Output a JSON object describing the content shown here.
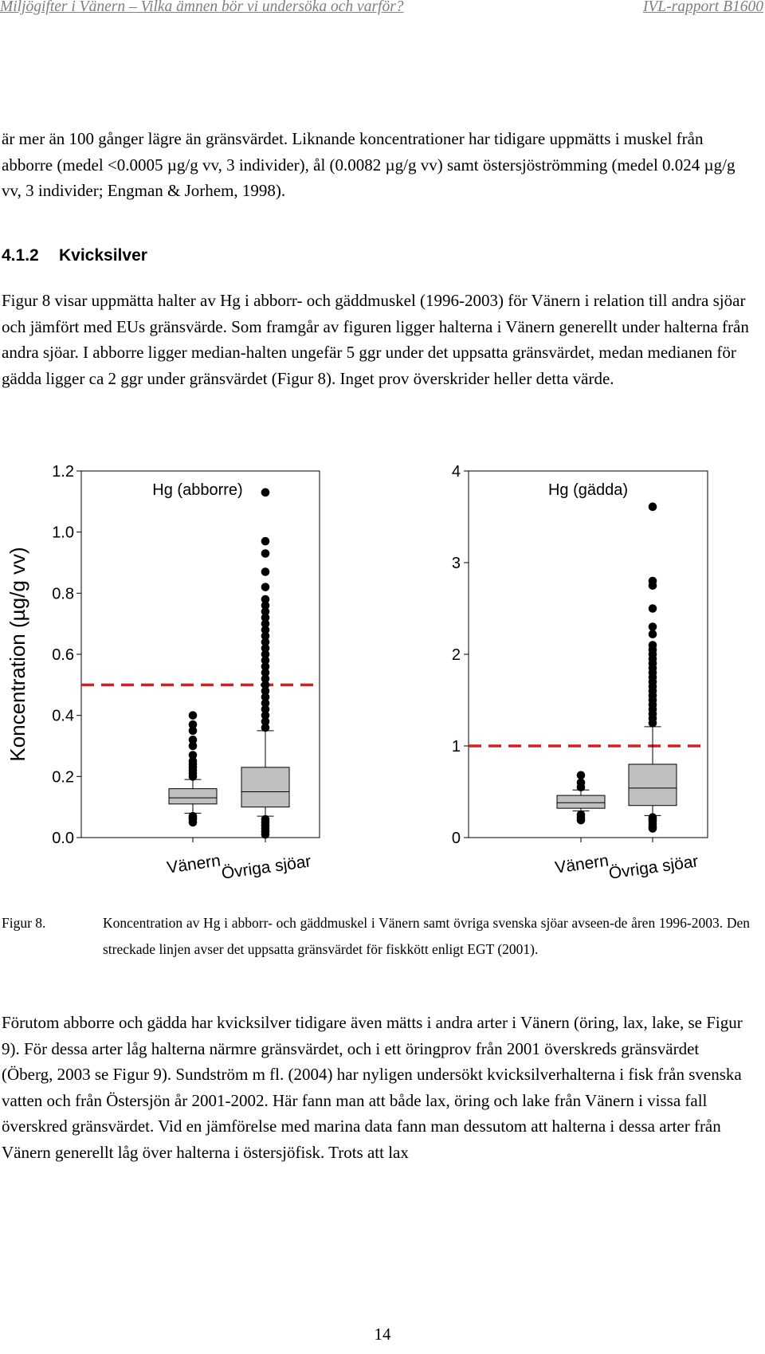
{
  "header": {
    "left": "Miljögifter i Vänern – Vilka ämnen bör vi undersöka och varför?",
    "right": "IVL-rapport B1600"
  },
  "intro_paragraph": "är mer än 100 gånger lägre än gränsvärdet. Liknande koncentrationer har tidigare uppmätts i muskel från abborre (medel <0.0005 µg/g vv, 3 individer), ål (0.0082 µg/g vv) samt östersjöströmming (medel 0.024 µg/g vv, 3 individer; Engman & Jorhem, 1998).",
  "section": {
    "number": "4.1.2",
    "title": "Kvicksilver"
  },
  "section_paragraph": "Figur 8 visar uppmätta halter av Hg i abborr- och gäddmuskel (1996-2003) för Vänern i relation till andra sjöar och jämfört med EUs gränsvärde. Som framgår av figuren ligger halterna i Vänern generellt under halterna från andra sjöar. I abborre ligger median-halten ungefär 5 ggr under det uppsatta gränsvärdet, medan medianen för gädda ligger ca 2 ggr under gränsvärdet  (Figur 8). Inget prov överskrider heller detta värde.",
  "chart_data": [
    {
      "type": "box",
      "title": "Hg (abborre)",
      "ylabel": "Koncentration (µg/g vv)",
      "ylim": [
        0.0,
        1.2
      ],
      "yticks": [
        "0.0",
        "0.2",
        "0.4",
        "0.6",
        "0.8",
        "1.0",
        "1.2"
      ],
      "threshold": 0.5,
      "threshold_style": "red dashed line",
      "categories": [
        "Vänern",
        "Övriga sjöar"
      ],
      "boxes": [
        {
          "category": "Vänern",
          "whisker_low": 0.08,
          "q1": 0.11,
          "median": 0.13,
          "q3": 0.16,
          "whisker_high": 0.19,
          "outliers": [
            0.05,
            0.06,
            0.065,
            0.07,
            0.2,
            0.21,
            0.22,
            0.23,
            0.24,
            0.25,
            0.27,
            0.3,
            0.32,
            0.35,
            0.37,
            0.4
          ]
        },
        {
          "category": "Övriga sjöar",
          "whisker_low": 0.07,
          "q1": 0.1,
          "median": 0.15,
          "q3": 0.23,
          "whisker_high": 0.35,
          "outliers": [
            0.01,
            0.02,
            0.03,
            0.04,
            0.05,
            0.06,
            0.36,
            0.38,
            0.4,
            0.42,
            0.44,
            0.46,
            0.48,
            0.5,
            0.52,
            0.54,
            0.56,
            0.58,
            0.6,
            0.62,
            0.64,
            0.66,
            0.68,
            0.7,
            0.72,
            0.74,
            0.76,
            0.78,
            0.82,
            0.87,
            0.93,
            0.97,
            1.13
          ]
        }
      ]
    },
    {
      "type": "box",
      "title": "Hg (gädda)",
      "ylim": [
        0,
        4
      ],
      "yticks": [
        "0",
        "1",
        "2",
        "3",
        "4"
      ],
      "threshold": 1.0,
      "threshold_style": "red dashed line",
      "categories": [
        "Vänern",
        "Övriga sjöar"
      ],
      "boxes": [
        {
          "category": "Vänern",
          "whisker_low": 0.29,
          "q1": 0.32,
          "median": 0.38,
          "q3": 0.46,
          "whisker_high": 0.52,
          "outliers": [
            0.19,
            0.22,
            0.25,
            0.55,
            0.6,
            0.68
          ]
        },
        {
          "category": "Övriga sjöar",
          "whisker_low": 0.24,
          "q1": 0.35,
          "median": 0.54,
          "q3": 0.8,
          "whisker_high": 1.21,
          "outliers": [
            0.1,
            0.12,
            0.15,
            0.18,
            0.2,
            0.22,
            1.25,
            1.3,
            1.35,
            1.4,
            1.45,
            1.5,
            1.55,
            1.6,
            1.65,
            1.7,
            1.75,
            1.8,
            1.85,
            1.9,
            1.95,
            2.0,
            2.05,
            2.1,
            2.22,
            2.3,
            2.5,
            2.75,
            2.8,
            3.61
          ]
        }
      ]
    }
  ],
  "caption": {
    "label": "Figur 8.",
    "text": "Koncentration av Hg i abborr- och gäddmuskel i Vänern samt övriga svenska sjöar avseen-de åren 1996-2003. Den streckade linjen avser det uppsatta gränsvärdet för fiskkött enligt EGT (2001)."
  },
  "closing_paragraph": "Förutom abborre och gädda har kvicksilver tidigare även mätts i andra arter i Vänern (öring, lax, lake, se Figur 9). För dessa arter låg halterna närmre gränsvärdet, och i ett öringprov från 2001 överskreds gränsvärdet (Öberg, 2003 se Figur 9). Sundström m fl. (2004) har nyligen undersökt kvicksilverhalterna i fisk från svenska vatten och från Östersjön år 2001-2002. Här fann man att både lax, öring och lake från Vänern i vissa fall överskred gränsvärdet. Vid en jämförelse med marina data fann man dessutom att halterna i dessa arter från Vänern generellt låg över halterna i östersjöfisk. Trots att lax",
  "page_number": "14",
  "colors": {
    "threshold": "#d42020",
    "box_fill": "#c0c0c0",
    "header_text": "#7f7f7f"
  }
}
